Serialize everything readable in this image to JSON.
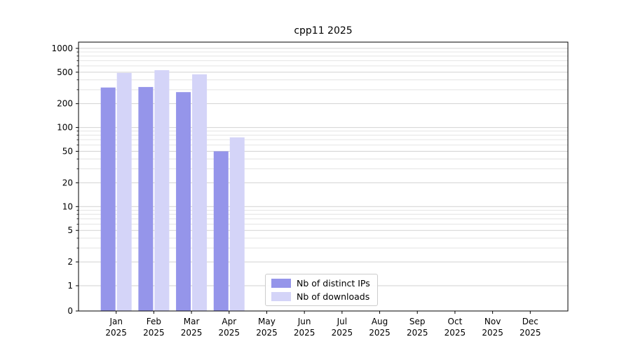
{
  "chart_data": {
    "type": "bar",
    "title": "cpp11 2025",
    "categories": [
      "Jan",
      "Feb",
      "Mar",
      "Apr",
      "May",
      "Jun",
      "Jul",
      "Aug",
      "Sep",
      "Oct",
      "Nov",
      "Dec"
    ],
    "x_year_label": "2025",
    "series": [
      {
        "name": "Nb of distinct IPs",
        "color": "#9595ea",
        "values": [
          320,
          325,
          280,
          50,
          0,
          0,
          0,
          0,
          0,
          0,
          0,
          0
        ]
      },
      {
        "name": "Nb of downloads",
        "color": "#d4d4f8",
        "values": [
          490,
          530,
          470,
          75,
          0,
          0,
          0,
          0,
          0,
          0,
          0,
          0
        ]
      }
    ],
    "yticks": [
      0,
      1,
      2,
      5,
      10,
      20,
      50,
      100,
      200,
      500,
      1000
    ],
    "yscale": "log",
    "ylim": [
      0,
      1200
    ],
    "grid": true,
    "legend_position": "lower center",
    "colors": {
      "axis": "#000000",
      "gridline": "#dcdcdc",
      "background": "#ffffff"
    }
  }
}
